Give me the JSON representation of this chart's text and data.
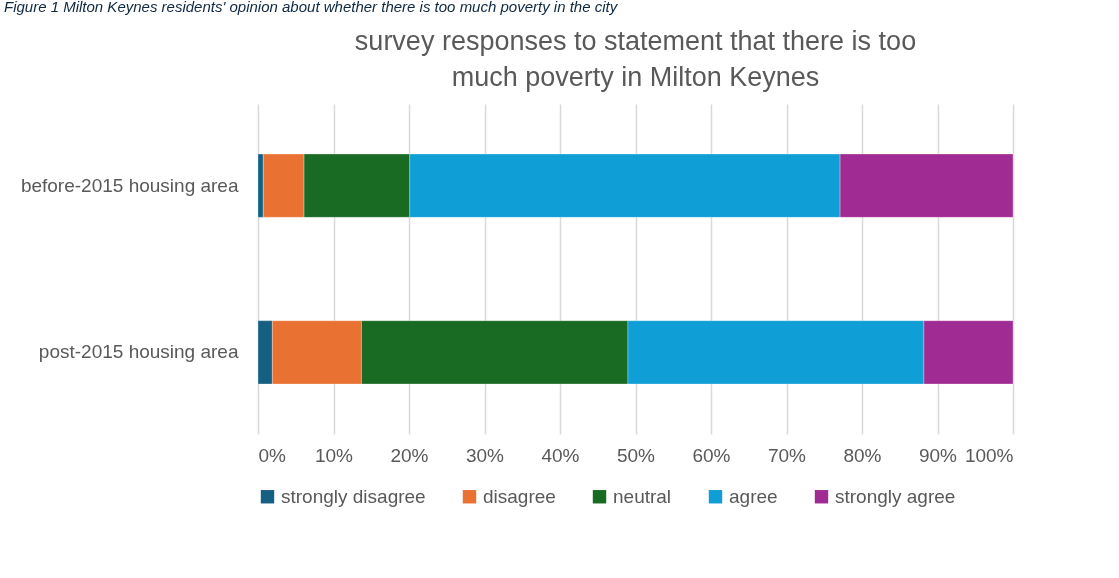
{
  "chart_data": {
    "type": "bar",
    "orientation": "horizontal",
    "stacked": true,
    "title": "survey responses to statement that there is too much poverty in Milton Keynes",
    "annotations": [
      "Figure 1 Milton Keynes residents' opinion about whether there is too much poverty in the city"
    ],
    "categories": [
      "before-2015 housing area",
      "post-2015 housing area"
    ],
    "series": [
      {
        "name": "strongly disagree",
        "color": "#156082",
        "values": [
          0.7,
          1.9
        ]
      },
      {
        "name": "disagree",
        "color": "#e97132",
        "values": [
          5.4,
          11.8
        ]
      },
      {
        "name": "neutral",
        "color": "#196b24",
        "values": [
          14.0,
          35.3
        ]
      },
      {
        "name": "agree",
        "color": "#0f9ed5",
        "values": [
          57.0,
          39.2
        ]
      },
      {
        "name": "strongly agree",
        "color": "#a02b93",
        "values": [
          22.9,
          11.8
        ]
      }
    ],
    "xlim": [
      0,
      100
    ],
    "xticks": [
      {
        "value": 0,
        "label": "0%"
      },
      {
        "value": 10,
        "label": "10%"
      },
      {
        "value": 20,
        "label": "20%"
      },
      {
        "value": 30,
        "label": "30%"
      },
      {
        "value": 40,
        "label": "40%"
      },
      {
        "value": 50,
        "label": "50%"
      },
      {
        "value": 60,
        "label": "60%"
      },
      {
        "value": 70,
        "label": "70%"
      },
      {
        "value": 80,
        "label": "80%"
      },
      {
        "value": 90,
        "label": "90%"
      },
      {
        "value": 100,
        "label": "100%"
      }
    ],
    "grid": "x",
    "legend": "bottom"
  }
}
